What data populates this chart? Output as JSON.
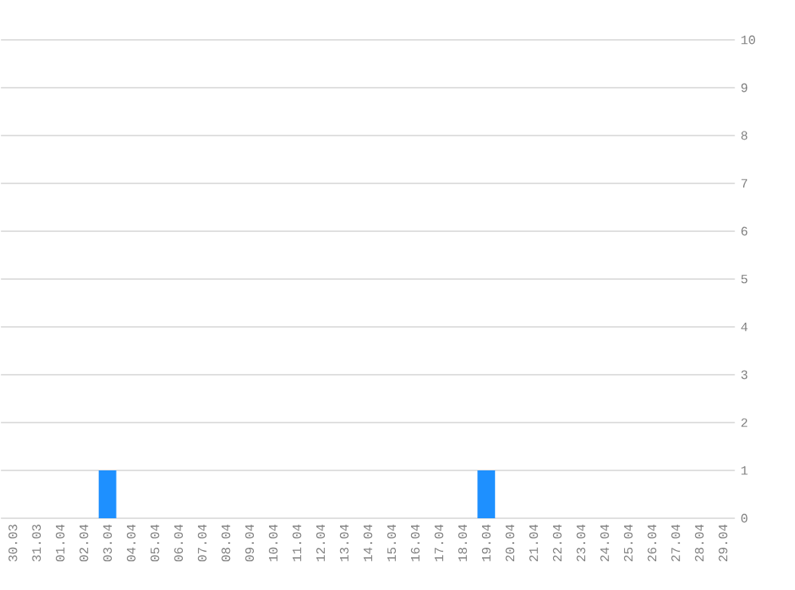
{
  "chart_data": {
    "type": "bar",
    "categories": [
      "30.03",
      "31.03",
      "01.04",
      "02.04",
      "03.04",
      "04.04",
      "05.04",
      "06.04",
      "07.04",
      "08.04",
      "09.04",
      "10.04",
      "11.04",
      "12.04",
      "13.04",
      "14.04",
      "15.04",
      "16.04",
      "17.04",
      "18.04",
      "19.04",
      "20.04",
      "21.04",
      "22.04",
      "23.04",
      "24.04",
      "25.04",
      "26.04",
      "27.04",
      "28.04",
      "29.04"
    ],
    "values": [
      0,
      0,
      0,
      0,
      1,
      0,
      0,
      0,
      0,
      0,
      0,
      0,
      0,
      0,
      0,
      0,
      0,
      0,
      0,
      0,
      1,
      0,
      0,
      0,
      0,
      0,
      0,
      0,
      0,
      0,
      0
    ],
    "color": "#1e90ff",
    "ylim": [
      0,
      10
    ],
    "yticks": [
      0,
      1,
      2,
      3,
      4,
      5,
      6,
      7,
      8,
      9,
      10
    ],
    "grid": "y"
  }
}
